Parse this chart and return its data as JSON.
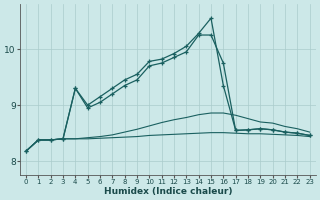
{
  "bg_color": "#cce8e8",
  "grid_color": "#aacccc",
  "line_color": "#1a6060",
  "x_label": "Humidex (Indice chaleur)",
  "xlim": [
    -0.5,
    23.5
  ],
  "ylim": [
    7.75,
    10.8
  ],
  "yticks": [
    8,
    9,
    10
  ],
  "xticks": [
    0,
    1,
    2,
    3,
    4,
    5,
    6,
    7,
    8,
    9,
    10,
    11,
    12,
    13,
    14,
    15,
    16,
    17,
    18,
    19,
    20,
    21,
    22,
    23
  ],
  "s1_x": [
    0,
    1,
    2,
    3,
    4,
    5,
    6,
    7,
    8,
    9,
    10,
    11,
    12,
    13,
    14,
    15,
    16,
    17,
    18,
    19,
    20,
    21,
    22,
    23
  ],
  "s1_y": [
    8.18,
    8.38,
    8.38,
    8.4,
    8.4,
    8.4,
    8.41,
    8.42,
    8.43,
    8.44,
    8.46,
    8.47,
    8.48,
    8.49,
    8.5,
    8.51,
    8.51,
    8.5,
    8.49,
    8.49,
    8.48,
    8.47,
    8.46,
    8.44
  ],
  "s2_x": [
    0,
    1,
    2,
    3,
    4,
    5,
    6,
    7,
    8,
    9,
    10,
    11,
    12,
    13,
    14,
    15,
    16,
    17,
    18,
    19,
    20,
    21,
    22,
    23
  ],
  "s2_y": [
    8.18,
    8.38,
    8.38,
    8.4,
    8.4,
    8.42,
    8.44,
    8.47,
    8.52,
    8.57,
    8.63,
    8.69,
    8.74,
    8.78,
    8.83,
    8.86,
    8.86,
    8.82,
    8.76,
    8.7,
    8.68,
    8.62,
    8.58,
    8.52
  ],
  "s3_x": [
    0,
    1,
    2,
    3,
    4,
    5,
    6,
    7,
    8,
    9,
    10,
    11,
    12,
    13,
    14,
    15,
    16,
    17,
    18,
    19,
    20,
    21,
    22,
    23
  ],
  "s3_y": [
    8.18,
    8.38,
    8.38,
    8.4,
    9.3,
    8.95,
    9.05,
    9.2,
    9.35,
    9.45,
    9.7,
    9.75,
    9.85,
    9.95,
    10.25,
    10.25,
    9.75,
    8.55,
    8.56,
    8.58,
    8.56,
    8.52,
    8.5,
    8.46
  ],
  "s4_x": [
    0,
    1,
    2,
    3,
    4,
    5,
    6,
    7,
    8,
    9,
    10,
    11,
    12,
    13,
    14,
    15,
    16,
    17,
    18,
    19,
    20,
    21,
    22,
    23
  ],
  "s4_y": [
    8.18,
    8.38,
    8.38,
    8.4,
    9.3,
    9.0,
    9.15,
    9.3,
    9.45,
    9.55,
    9.78,
    9.82,
    9.92,
    10.05,
    10.28,
    10.55,
    9.35,
    8.55,
    8.56,
    8.58,
    8.56,
    8.52,
    8.5,
    8.46
  ]
}
